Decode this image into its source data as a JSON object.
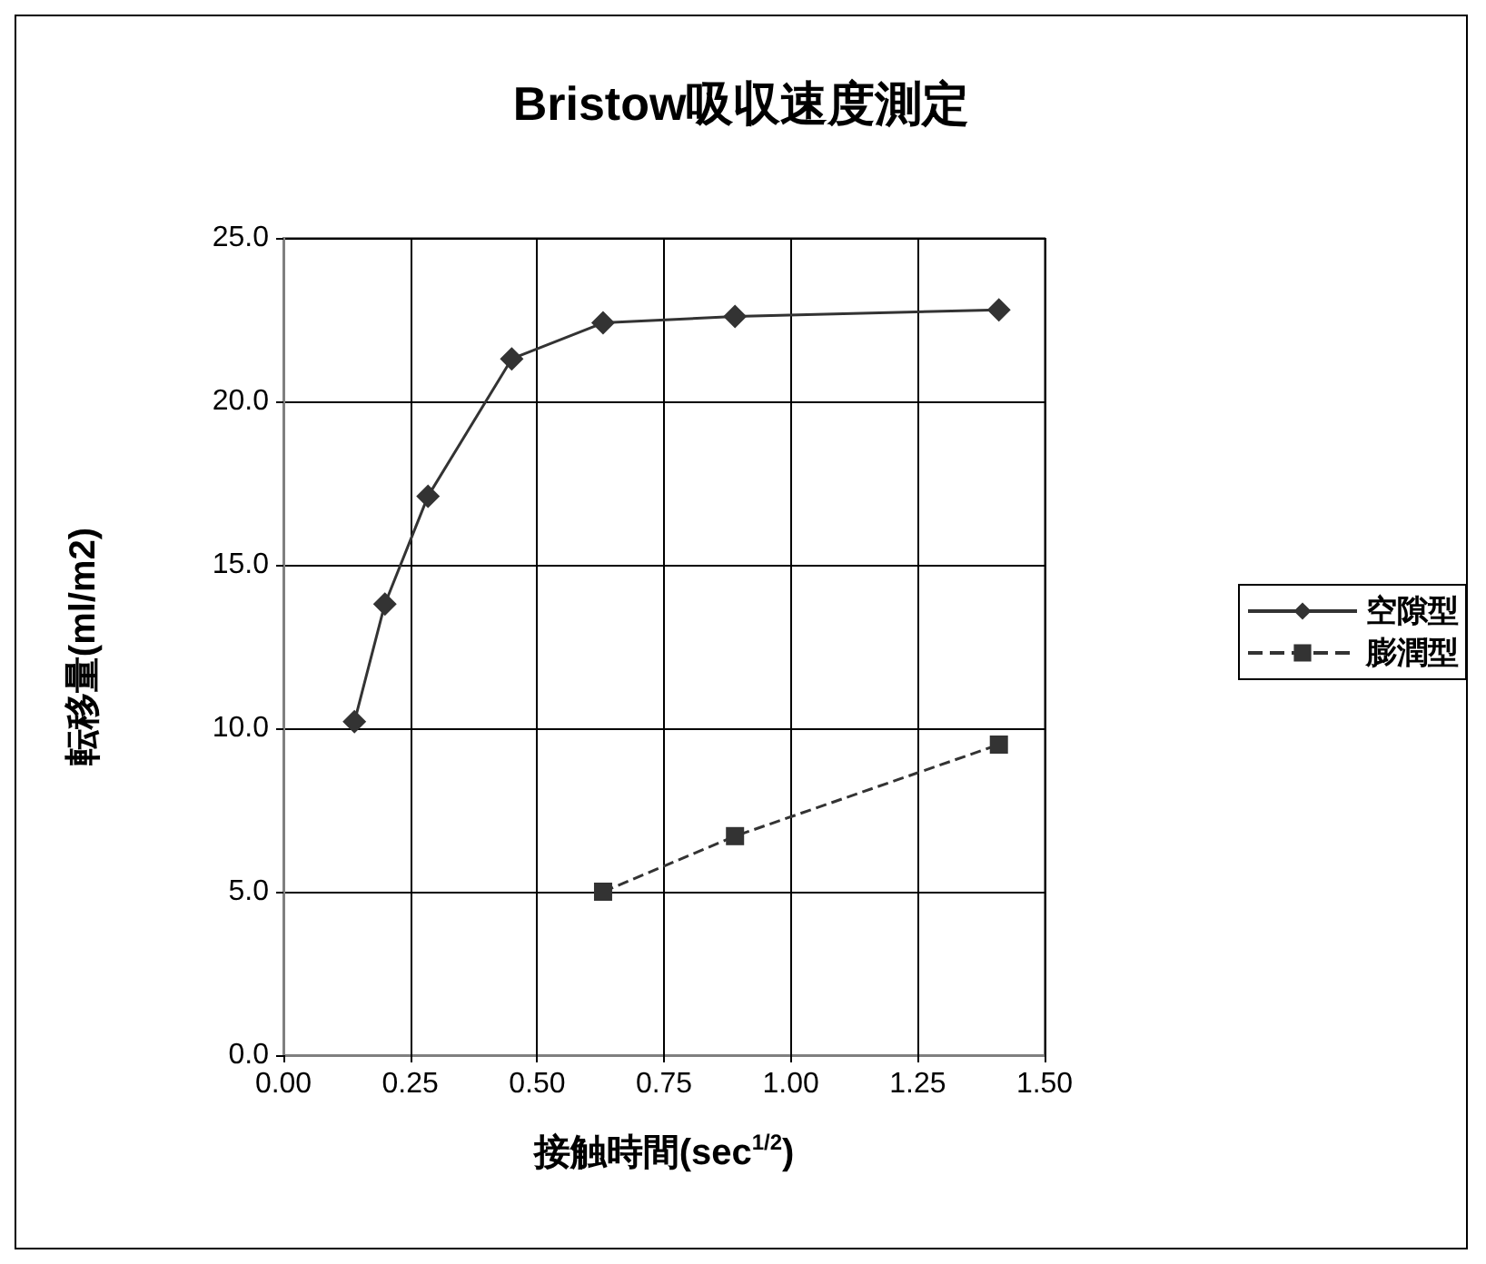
{
  "chart_data": {
    "type": "line",
    "title": "Bristow吸収速度測定",
    "xlabel": "接触時間(sec$^{1/2}$)",
    "ylabel": "転移量(ml/m2)",
    "series": [
      {
        "name": "空隙型",
        "color": "#333333",
        "marker": "diamond",
        "line_style": "solid",
        "x": [
          0.14,
          0.2,
          0.285,
          0.45,
          0.63,
          0.89,
          1.41
        ],
        "values": [
          10.2,
          13.8,
          17.1,
          21.3,
          22.4,
          22.6,
          22.8
        ]
      },
      {
        "name": "膨潤型",
        "color": "#333333",
        "marker": "square",
        "line_style": "dashed",
        "x": [
          0.63,
          0.89,
          1.41
        ],
        "values": [
          5.0,
          6.7,
          9.5
        ]
      }
    ],
    "xlim": [
      0,
      1.5
    ],
    "xticks": [
      {
        "value": 0,
        "label": "0.00"
      },
      {
        "value": 0.25,
        "label": "0.25"
      },
      {
        "value": 0.5,
        "label": "0.50"
      },
      {
        "value": 0.75,
        "label": "0.75"
      },
      {
        "value": 1,
        "label": "1.00"
      },
      {
        "value": 1.25,
        "label": "1.25"
      },
      {
        "value": 1.5,
        "label": "1.50"
      }
    ],
    "ylim": [
      0,
      25
    ],
    "yticks": [
      {
        "value": 0,
        "label": "0.0"
      },
      {
        "value": 5,
        "label": "5.0"
      },
      {
        "value": 10,
        "label": "10.0"
      },
      {
        "value": 15,
        "label": "15.0"
      },
      {
        "value": 20,
        "label": "20.0"
      },
      {
        "value": 25,
        "label": "25.0"
      }
    ],
    "grid": true,
    "legend": "right"
  }
}
